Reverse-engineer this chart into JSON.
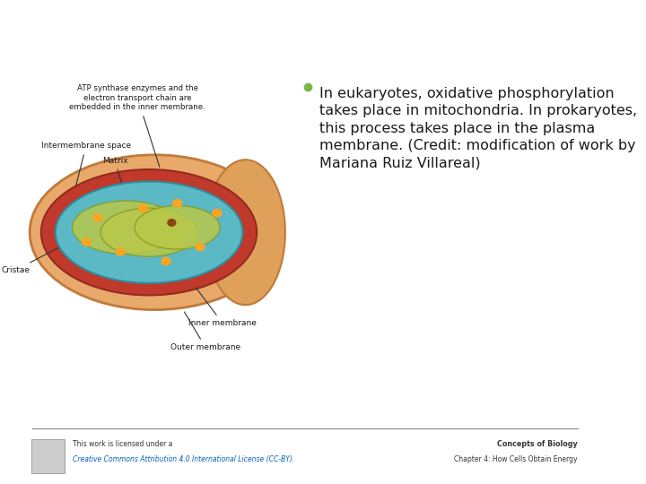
{
  "bg_color": "#ffffff",
  "bullet_color": "#7ab648",
  "bullet_text": "In eukaryotes, oxidative phosphorylation takes place in mitochondria. In prokaryotes, this process takes place in the plasma membrane. (Credit: modification of work by Mariana Ruiz Villareal)",
  "footer_line_color": "#888888",
  "footer_left_line1": "This work is licensed under a",
  "footer_left_line2": "Creative Commons Attribution 4.0 International License (CC-BY).",
  "footer_right_line1": "Concepts of Biology",
  "footer_right_line2": "Chapter 4: How Cells Obtain Energy",
  "text_color": "#1a1a1a",
  "footer_text_color": "#333333",
  "link_color": "#0563c1"
}
